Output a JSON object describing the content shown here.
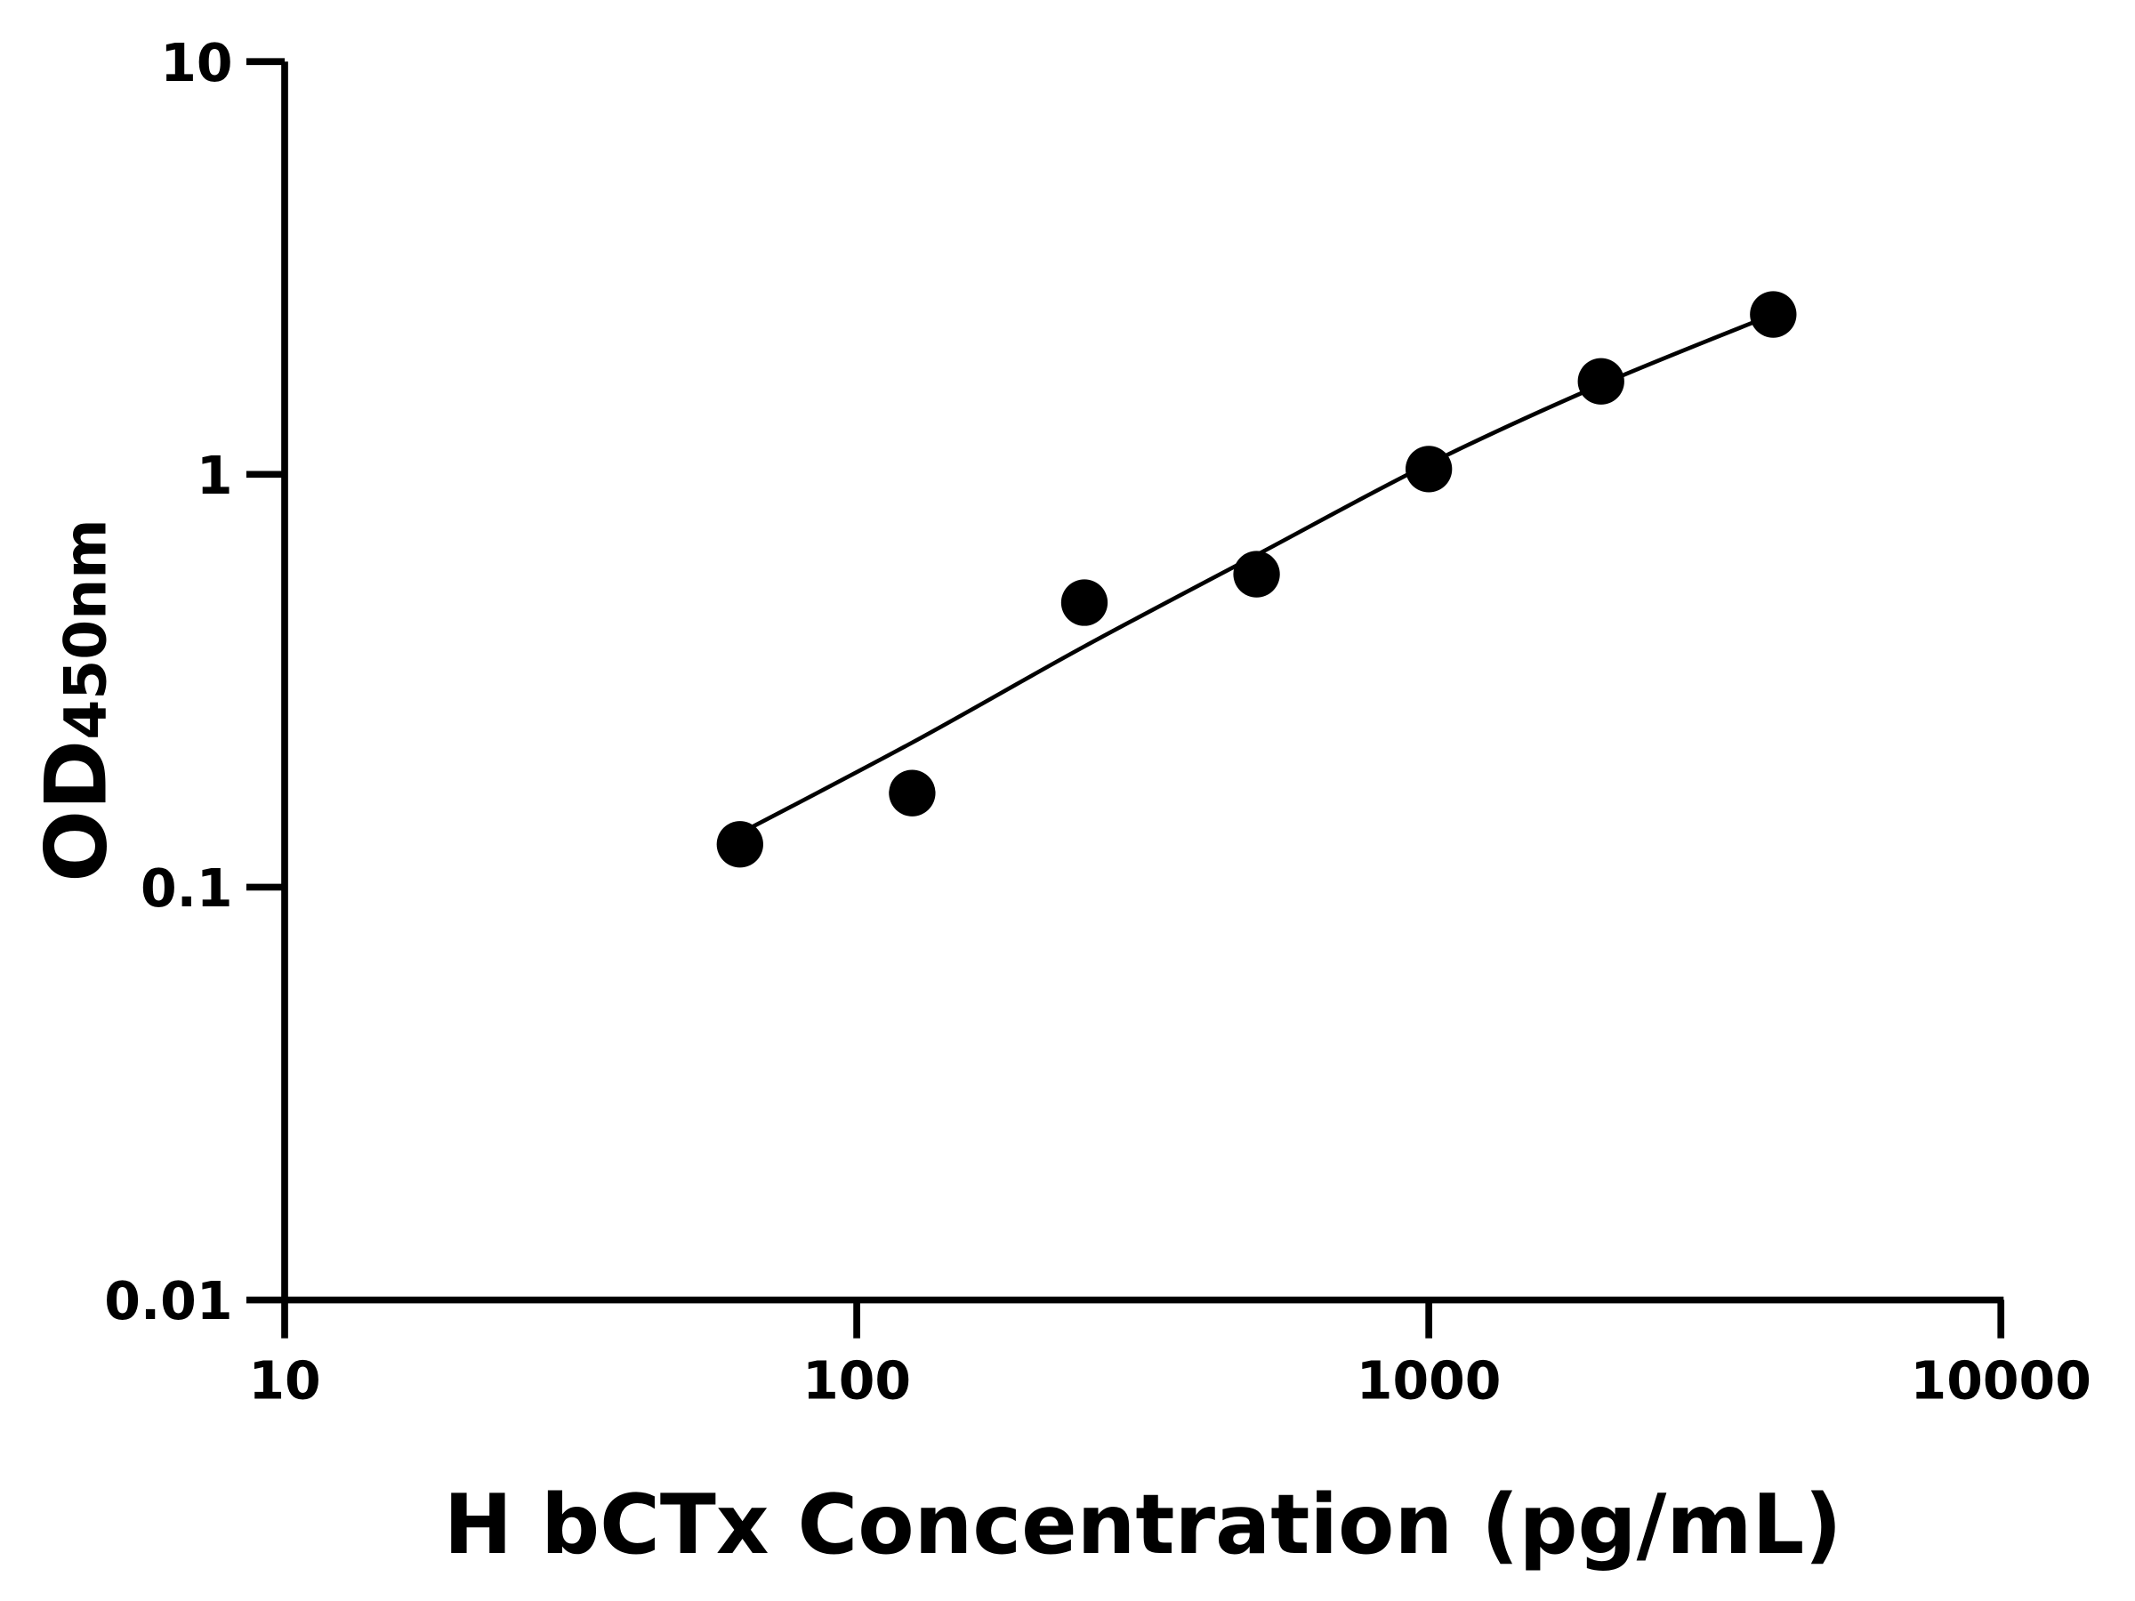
{
  "chart_data": {
    "type": "scatter",
    "title": "",
    "xlabel": "H bCTx Concentration (pg/mL)",
    "ylabel_main": "OD",
    "ylabel_sub": "450nm",
    "x_scale": "log",
    "y_scale": "log",
    "xlim": [
      10,
      10000
    ],
    "ylim": [
      0.01,
      10
    ],
    "x_ticks": [
      "10",
      "100",
      "1000",
      "10000"
    ],
    "y_ticks": [
      "0.01",
      "0.1",
      "1",
      "10"
    ],
    "grid": false,
    "legend": "none",
    "points": [
      {
        "x": 62.5,
        "y": 0.127
      },
      {
        "x": 125,
        "y": 0.169
      },
      {
        "x": 250,
        "y": 0.489
      },
      {
        "x": 500,
        "y": 0.573
      },
      {
        "x": 1000,
        "y": 1.03
      },
      {
        "x": 2000,
        "y": 1.68
      },
      {
        "x": 4000,
        "y": 2.44
      }
    ],
    "fit_curve": [
      {
        "x": 62.5,
        "y": 0.135
      },
      {
        "x": 125,
        "y": 0.224
      },
      {
        "x": 250,
        "y": 0.383
      },
      {
        "x": 500,
        "y": 0.638
      },
      {
        "x": 1000,
        "y": 1.06
      },
      {
        "x": 2000,
        "y": 1.65
      },
      {
        "x": 4000,
        "y": 2.44
      }
    ],
    "color": "#000000"
  }
}
